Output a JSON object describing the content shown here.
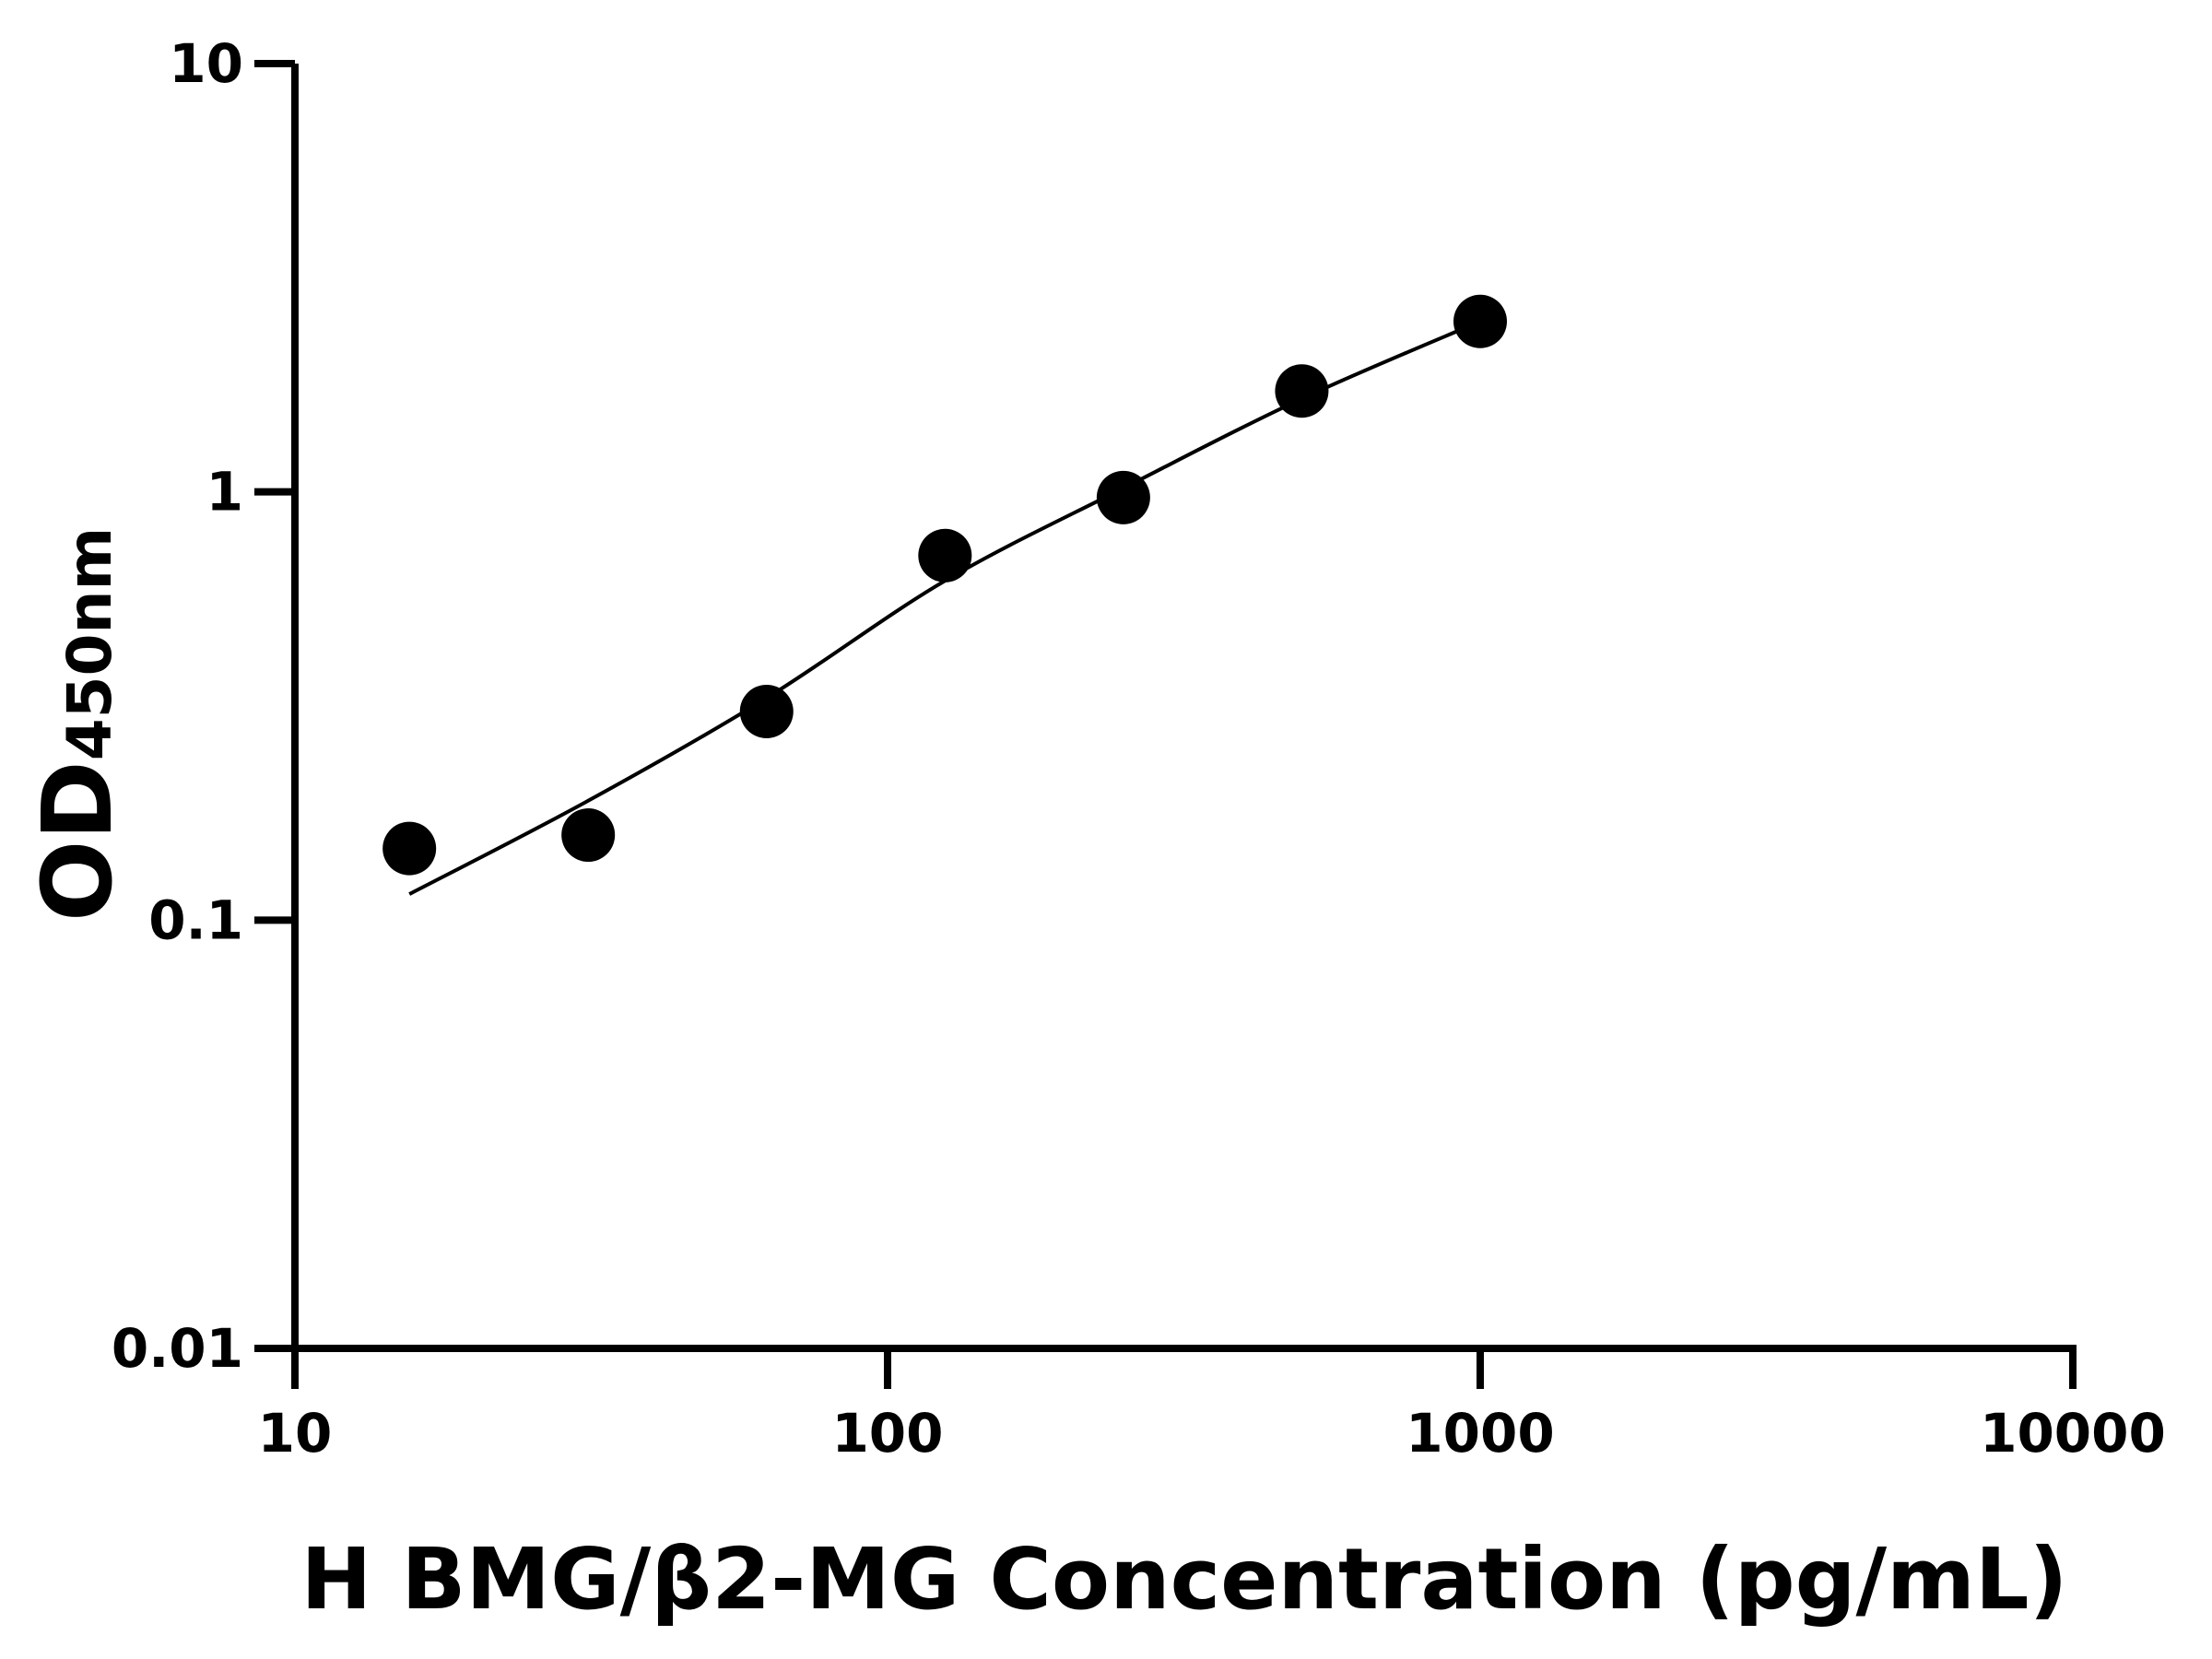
{
  "chart_data": {
    "type": "scatter",
    "title": "",
    "xlabel": "H BMG/β2-MG Concentration (pg/mL)",
    "ylabel_main": "OD",
    "ylabel_sub": "450nm",
    "x_scale": "log",
    "y_scale": "log",
    "xlim": [
      10,
      10000
    ],
    "ylim": [
      0.01,
      10
    ],
    "x_ticks": [
      "10",
      "100",
      "1000",
      "10000"
    ],
    "y_ticks": [
      "0.01",
      "0.1",
      "1",
      "10"
    ],
    "grid": false,
    "legend": "none",
    "series": [
      {
        "x": [
          15.6,
          31.25,
          62.5,
          125,
          250,
          500,
          1000
        ],
        "y": [
          0.147,
          0.158,
          0.307,
          0.71,
          0.97,
          1.72,
          2.5
        ]
      }
    ],
    "fit_curve": {
      "x": [
        15.6,
        31.25,
        62.5,
        125,
        250,
        500,
        1000
      ],
      "y": [
        0.115,
        0.19,
        0.33,
        0.62,
        1.02,
        1.65,
        2.5
      ]
    },
    "colors": {
      "marker": "#000000",
      "line": "#000000",
      "axis": "#000000"
    }
  }
}
